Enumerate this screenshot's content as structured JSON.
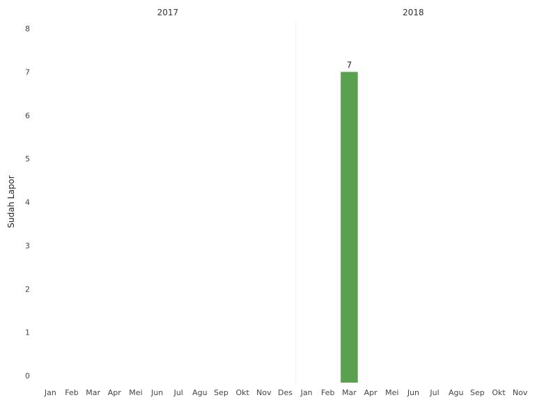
{
  "chart_data": {
    "type": "bar",
    "ylabel": "Sudah Lapor",
    "xlabel": "",
    "ylim": [
      0,
      8
    ],
    "yticks": [
      0,
      1,
      2,
      3,
      4,
      5,
      6,
      7,
      8
    ],
    "grid": false,
    "panels": [
      {
        "title": "2017",
        "categories": [
          "Jan",
          "Feb",
          "Mar",
          "Apr",
          "Mei",
          "Jun",
          "Jul",
          "Agu",
          "Sep",
          "Okt",
          "Nov",
          "Des"
        ],
        "values": [
          null,
          null,
          null,
          null,
          null,
          null,
          null,
          null,
          null,
          null,
          null,
          null
        ]
      },
      {
        "title": "2018",
        "categories": [
          "Jan",
          "Feb",
          "Mar",
          "Apr",
          "Mei",
          "Jun",
          "Jul",
          "Agu",
          "Sep",
          "Okt",
          "Nov"
        ],
        "values": [
          null,
          null,
          7,
          null,
          null,
          null,
          null,
          null,
          null,
          null,
          null
        ],
        "data_labels": [
          null,
          null,
          "7",
          null,
          null,
          null,
          null,
          null,
          null,
          null,
          null
        ]
      }
    ],
    "colors": {
      "bar": "#59a14f",
      "divider": "#eeeeee"
    }
  }
}
